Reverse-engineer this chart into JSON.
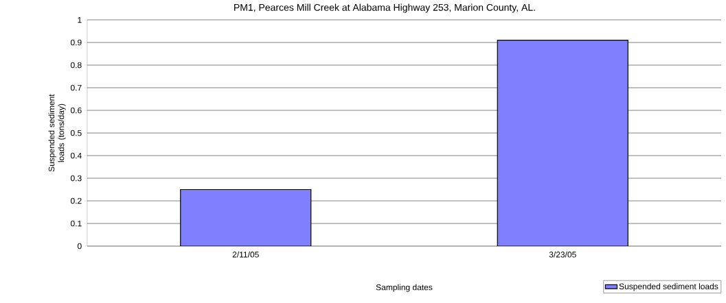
{
  "chart_data": {
    "type": "bar",
    "title": "PM1, Pearces Mill Creek at Alabama Highway 253, Marion County, AL.",
    "xlabel": "Sampling dates",
    "ylabel": "Suspended sediment loads (tons/day)",
    "categories": [
      "2/11/05",
      "3/23/05"
    ],
    "series": [
      {
        "name": "Suspended sediment loads",
        "color": "#8080ff",
        "values": [
          0.25,
          0.91
        ]
      }
    ],
    "ylim": [
      0,
      1
    ],
    "yticks": [
      0,
      0.1,
      0.2,
      0.3,
      0.4,
      0.5,
      0.6,
      0.7,
      0.8,
      0.9,
      1
    ],
    "grid": "y",
    "legend": "bottom right"
  }
}
